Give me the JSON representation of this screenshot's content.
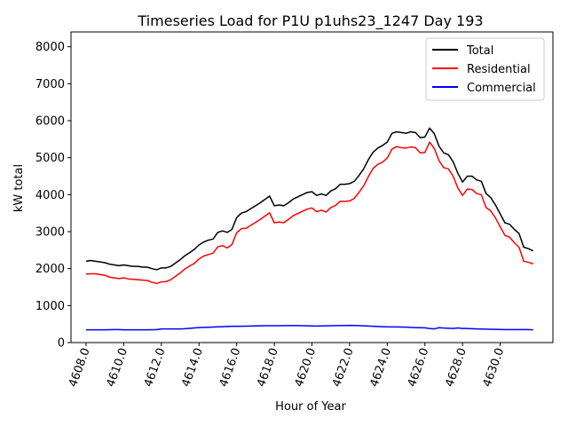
{
  "chart_data": {
    "type": "line",
    "title": "Timeseries Load for P1U p1uhs23_1247  Day 193",
    "xlabel": "Hour of Year",
    "ylabel": "kW total",
    "xlim": [
      4607.2,
      4632.8
    ],
    "ylim": [
      0,
      8400
    ],
    "xticks": [
      4608,
      4610,
      4612,
      4614,
      4616,
      4618,
      4620,
      4622,
      4624,
      4626,
      4628,
      4630
    ],
    "xtick_labels": [
      "4608.0",
      "4610.0",
      "4612.0",
      "4614.0",
      "4616.0",
      "4618.0",
      "4620.0",
      "4622.0",
      "4624.0",
      "4626.0",
      "4628.0",
      "4630.0"
    ],
    "yticks": [
      0,
      1000,
      2000,
      3000,
      4000,
      5000,
      6000,
      7000,
      8000
    ],
    "ytick_labels": [
      "0",
      "1000",
      "2000",
      "3000",
      "4000",
      "5000",
      "6000",
      "7000",
      "8000"
    ],
    "legend_position": "top-right",
    "x": [
      4608.0,
      4608.25,
      4608.5,
      4608.75,
      4609.0,
      4609.25,
      4609.5,
      4609.75,
      4610.0,
      4610.25,
      4610.5,
      4610.75,
      4611.0,
      4611.25,
      4611.5,
      4611.75,
      4612.0,
      4612.25,
      4612.5,
      4612.75,
      4613.0,
      4613.25,
      4613.5,
      4613.75,
      4614.0,
      4614.25,
      4614.5,
      4614.75,
      4615.0,
      4615.25,
      4615.5,
      4615.75,
      4616.0,
      4616.25,
      4616.5,
      4616.75,
      4617.0,
      4617.25,
      4617.5,
      4617.75,
      4618.0,
      4618.25,
      4618.5,
      4618.75,
      4619.0,
      4619.25,
      4619.5,
      4619.75,
      4620.0,
      4620.25,
      4620.5,
      4620.75,
      4621.0,
      4621.25,
      4621.5,
      4621.75,
      4622.0,
      4622.25,
      4622.5,
      4622.75,
      4623.0,
      4623.25,
      4623.5,
      4623.75,
      4624.0,
      4624.25,
      4624.5,
      4624.75,
      4625.0,
      4625.25,
      4625.5,
      4625.75,
      4626.0,
      4626.25,
      4626.5,
      4626.75,
      4627.0,
      4627.25,
      4627.5,
      4627.75,
      4628.0,
      4628.25,
      4628.5,
      4628.75,
      4629.0,
      4629.25,
      4629.5,
      4629.75,
      4630.0,
      4630.25,
      4630.5,
      4630.75,
      4631.0,
      4631.25,
      4631.5,
      4631.75
    ],
    "series": [
      {
        "name": "Total",
        "color": "#000000",
        "values": [
          2200,
          2220,
          2200,
          2180,
          2160,
          2120,
          2100,
          2080,
          2100,
          2080,
          2060,
          2060,
          2040,
          2040,
          2000,
          1970,
          2020,
          2020,
          2060,
          2150,
          2240,
          2350,
          2430,
          2520,
          2640,
          2720,
          2770,
          2800,
          2980,
          3020,
          2980,
          3060,
          3380,
          3500,
          3540,
          3620,
          3700,
          3780,
          3870,
          3960,
          3700,
          3720,
          3700,
          3780,
          3880,
          3940,
          4000,
          4060,
          4080,
          3980,
          4020,
          3980,
          4100,
          4160,
          4280,
          4280,
          4300,
          4360,
          4520,
          4700,
          4950,
          5150,
          5260,
          5330,
          5420,
          5660,
          5700,
          5680,
          5660,
          5700,
          5680,
          5540,
          5560,
          5800,
          5650,
          5310,
          5130,
          5080,
          4890,
          4580,
          4340,
          4500,
          4500,
          4400,
          4360,
          4030,
          3920,
          3720,
          3480,
          3240,
          3200,
          3060,
          2950,
          2580,
          2540,
          2480
        ]
      },
      {
        "name": "Residential",
        "color": "#ff0000",
        "values": [
          1850,
          1860,
          1860,
          1840,
          1820,
          1770,
          1750,
          1730,
          1750,
          1720,
          1710,
          1700,
          1690,
          1680,
          1630,
          1600,
          1640,
          1650,
          1700,
          1790,
          1880,
          1990,
          2070,
          2140,
          2260,
          2340,
          2380,
          2420,
          2590,
          2620,
          2560,
          2650,
          2970,
          3080,
          3090,
          3170,
          3250,
          3330,
          3420,
          3510,
          3240,
          3260,
          3240,
          3330,
          3430,
          3490,
          3550,
          3610,
          3640,
          3540,
          3580,
          3530,
          3650,
          3710,
          3820,
          3820,
          3830,
          3900,
          4060,
          4240,
          4490,
          4710,
          4820,
          4880,
          4990,
          5230,
          5300,
          5270,
          5260,
          5290,
          5270,
          5130,
          5140,
          5420,
          5250,
          4920,
          4730,
          4700,
          4500,
          4180,
          3980,
          4150,
          4140,
          4030,
          4000,
          3650,
          3560,
          3370,
          3130,
          2900,
          2850,
          2700,
          2580,
          2200,
          2170,
          2130
        ]
      },
      {
        "name": "Commercial",
        "color": "#0000ff",
        "values": [
          345,
          345,
          345,
          345,
          345,
          348,
          352,
          350,
          345,
          345,
          345,
          345,
          345,
          345,
          348,
          350,
          370,
          370,
          368,
          368,
          370,
          375,
          385,
          395,
          405,
          410,
          415,
          420,
          425,
          430,
          435,
          440,
          440,
          442,
          445,
          448,
          450,
          452,
          455,
          455,
          455,
          455,
          458,
          460,
          460,
          458,
          455,
          452,
          450,
          448,
          450,
          452,
          455,
          458,
          460,
          462,
          465,
          462,
          458,
          452,
          446,
          440,
          435,
          430,
          425,
          424,
          424,
          420,
          418,
          410,
          406,
          402,
          398,
          380,
          370,
          402,
          394,
          388,
          382,
          395,
          382,
          380,
          376,
          370,
          365,
          362,
          360,
          356,
          354,
          350,
          350,
          350,
          350,
          350,
          350,
          345
        ]
      }
    ]
  }
}
